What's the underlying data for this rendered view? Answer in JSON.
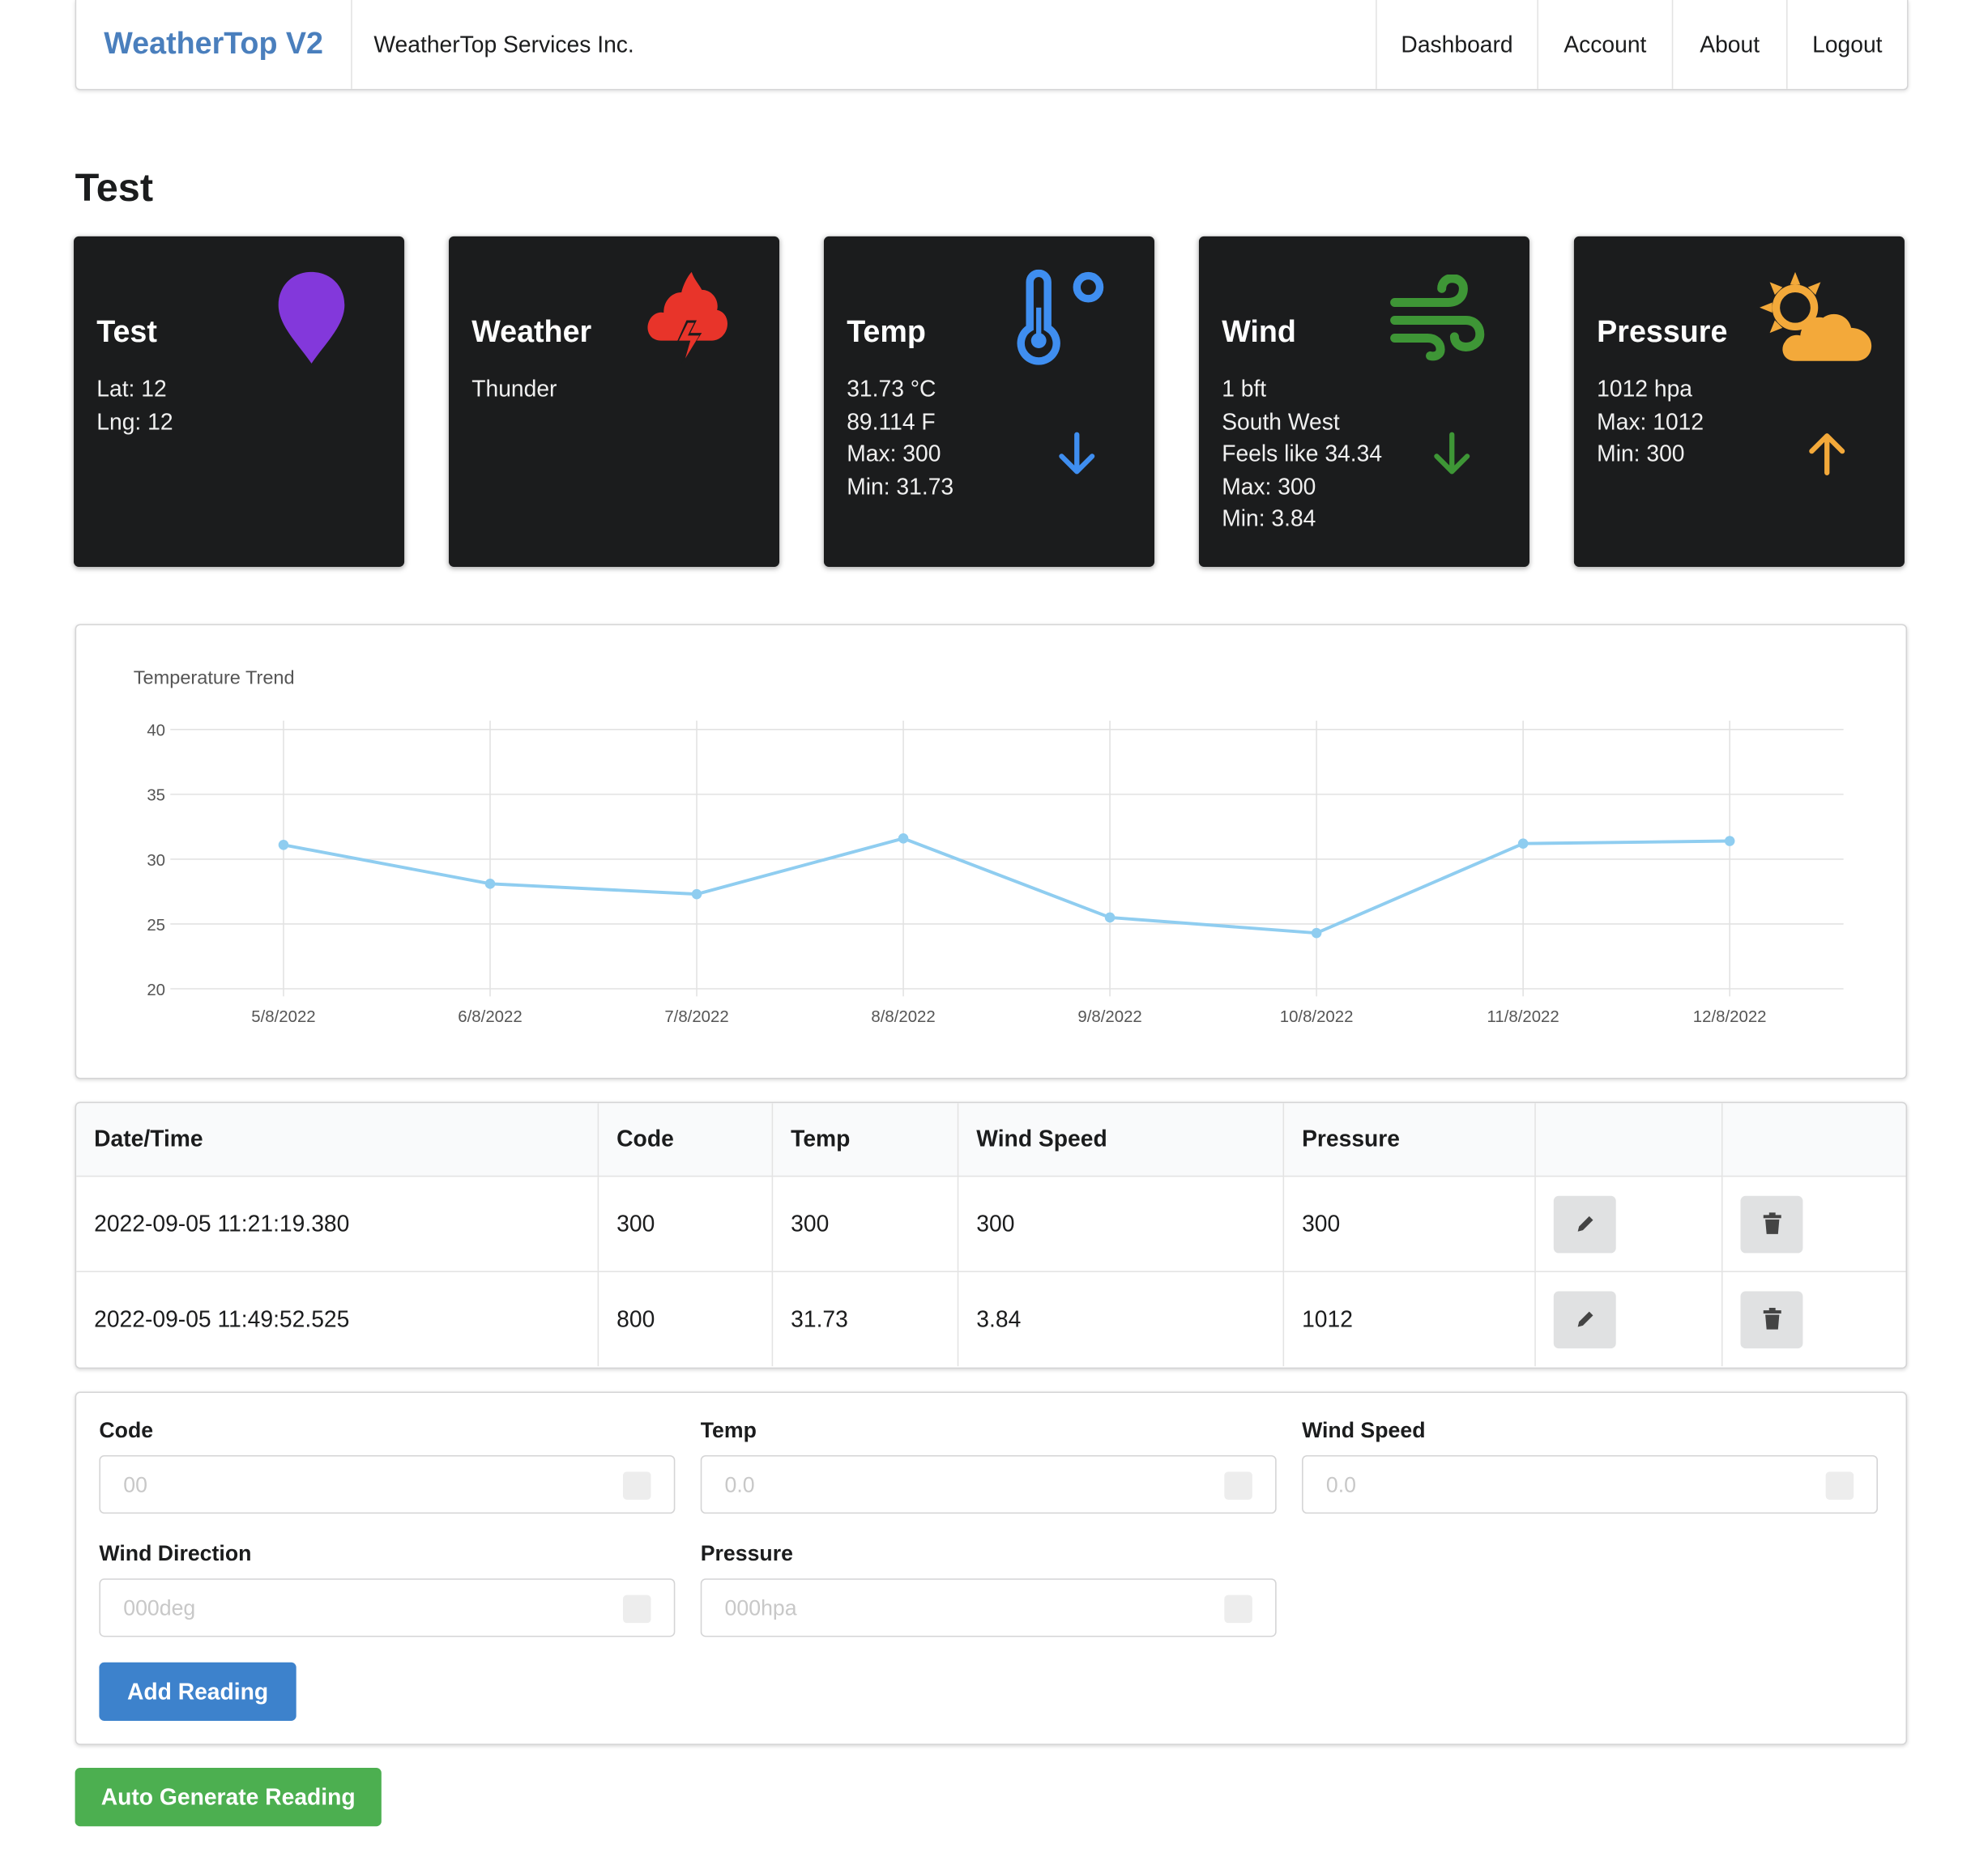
{
  "nav": {
    "brand": "WeatherTop V2",
    "company": "WeatherTop Services Inc.",
    "items": [
      "Dashboard",
      "Account",
      "About",
      "Logout"
    ]
  },
  "page_title": "Test",
  "cards": {
    "station": {
      "title": "Test",
      "lines": [
        "Lat: 12",
        "Lng: 12"
      ],
      "icon": "map-pin-icon",
      "color": "#8338db"
    },
    "weather": {
      "title": "Weather",
      "lines": [
        "Thunder"
      ],
      "icon": "thunder-cloud-icon",
      "color": "#e8342a"
    },
    "temp": {
      "title": "Temp",
      "lines": [
        "31.73 °C",
        "89.114 F",
        "Max: 300",
        "Min: 31.73"
      ],
      "icon": "thermometer-icon",
      "trend_icon": "arrow-down-icon",
      "color": "#3f8ef0"
    },
    "wind": {
      "title": "Wind",
      "lines": [
        "1 bft",
        "South West",
        "Feels like 34.34",
        "Max: 300",
        "Min: 3.84"
      ],
      "icon": "wind-icon",
      "trend_icon": "arrow-down-icon",
      "color": "#3e9636"
    },
    "pressure": {
      "title": "Pressure",
      "lines": [
        "1012 hpa",
        "Max: 1012",
        "Min: 300"
      ],
      "icon": "sun-cloud-icon",
      "trend_icon": "arrow-up-icon",
      "color": "#f3a93a"
    }
  },
  "chart_data": {
    "type": "line",
    "title": "Temperature Trend",
    "categories": [
      "5/8/2022",
      "6/8/2022",
      "7/8/2022",
      "8/8/2022",
      "9/8/2022",
      "10/8/2022",
      "11/8/2022",
      "12/8/2022"
    ],
    "values": [
      31.1,
      28.1,
      27.3,
      31.6,
      25.5,
      24.3,
      31.2,
      31.4
    ],
    "ylim": [
      20,
      40
    ],
    "yticks": [
      40,
      35,
      30,
      25,
      20
    ],
    "grid": true,
    "legend": "none",
    "color": "#8fcdf0"
  },
  "table": {
    "headers": [
      "Date/Time",
      "Code",
      "Temp",
      "Wind Speed",
      "Pressure"
    ],
    "rows": [
      {
        "datetime": "2022-09-05 11:21:19.380",
        "code": "300",
        "temp": "300",
        "wind_speed": "300",
        "pressure": "300"
      },
      {
        "datetime": "2022-09-05 11:49:52.525",
        "code": "800",
        "temp": "31.73",
        "wind_speed": "3.84",
        "pressure": "1012"
      }
    ]
  },
  "form": {
    "code": {
      "label": "Code",
      "placeholder": "00"
    },
    "temp": {
      "label": "Temp",
      "placeholder": "0.0"
    },
    "wind_speed": {
      "label": "Wind Speed",
      "placeholder": "0.0"
    },
    "wind_direction": {
      "label": "Wind Direction",
      "placeholder": "000deg"
    },
    "pressure": {
      "label": "Pressure",
      "placeholder": "000hpa"
    },
    "add_label": "Add Reading"
  },
  "auto_generate_label": "Auto Generate Reading",
  "colors": {
    "brand": "#4a7fbd",
    "add_button": "#3d82cc",
    "auto_button": "#4caf50",
    "card_bg": "#1b1c1d"
  }
}
